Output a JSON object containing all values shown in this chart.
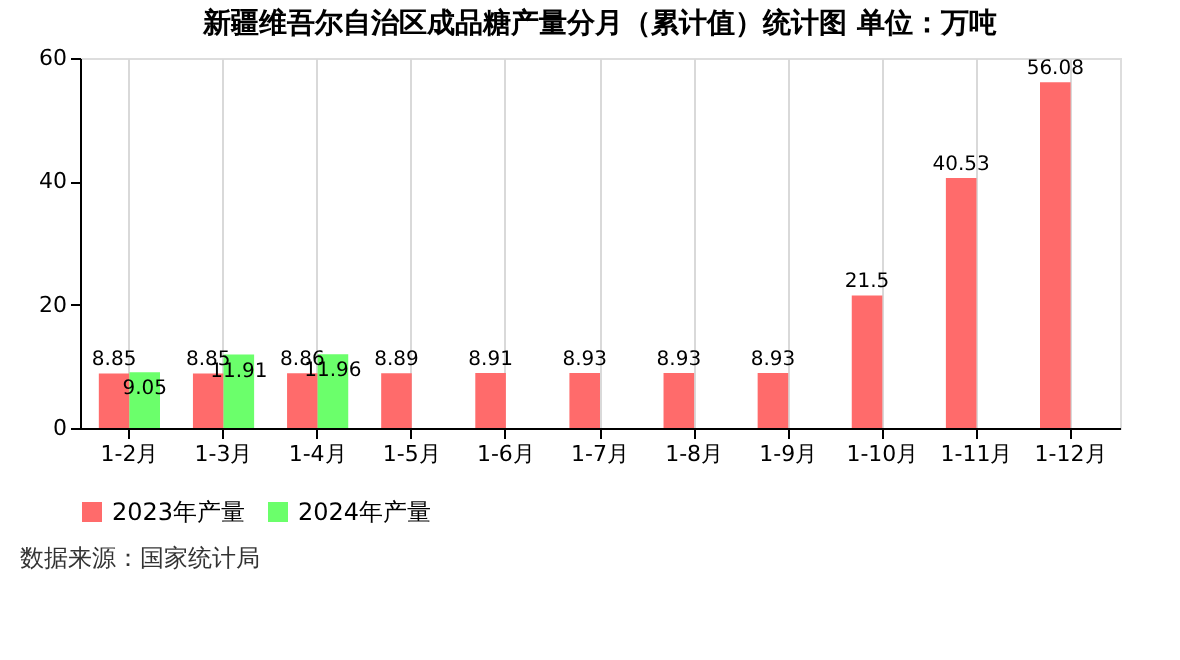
{
  "chart_data": {
    "type": "bar",
    "title": "新疆维吾尔自治区成品糖产量分月（累计值）统计图 单位：万吨",
    "categories": [
      "1-2月",
      "1-3月",
      "1-4月",
      "1-5月",
      "1-6月",
      "1-7月",
      "1-8月",
      "1-9月",
      "1-10月",
      "1-11月",
      "1-12月"
    ],
    "series": [
      {
        "name": "2023年产量",
        "color": "#ff6b6b",
        "values": [
          8.85,
          8.85,
          8.86,
          8.89,
          8.91,
          8.93,
          8.93,
          8.93,
          21.5,
          40.53,
          56.08
        ]
      },
      {
        "name": "2024年产量",
        "color": "#6bff6b",
        "values": [
          9.05,
          11.91,
          11.96,
          null,
          null,
          null,
          null,
          null,
          null,
          null,
          null
        ]
      }
    ],
    "ylim": [
      0,
      60
    ],
    "yticks": [
      0,
      20,
      40,
      60
    ],
    "grid": "x",
    "legend": "bottom",
    "data_labels": true,
    "annotations": [
      "数据来源：国家统计局"
    ]
  }
}
